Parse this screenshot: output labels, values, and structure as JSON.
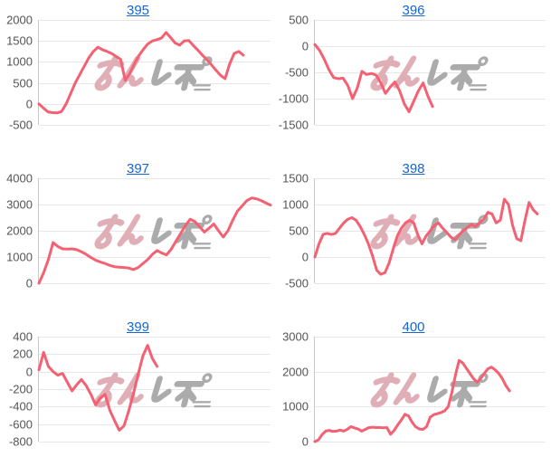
{
  "style": {
    "background": "#ffffff",
    "link_color": "#1766d2",
    "tick_color": "#555555",
    "grid_color": "#e7e7e7",
    "axis_color": "#c9c9c9",
    "line_color": "#f36173",
    "watermark_pink": "#dfaeb6",
    "watermark_gray": "#ababab"
  },
  "watermark": {
    "text": "みんレポ"
  },
  "chart_data": [
    {
      "type": "line",
      "title": "395",
      "yticks": [
        2000,
        1500,
        1000,
        500,
        0,
        -500
      ],
      "ylim": [
        -500,
        2000
      ],
      "x_slots": 52,
      "values": [
        0,
        -100,
        -190,
        -210,
        -215,
        -180,
        0,
        250,
        500,
        700,
        900,
        1100,
        1250,
        1350,
        1290,
        1250,
        1200,
        1130,
        1060,
        560,
        720,
        950,
        1150,
        1300,
        1430,
        1500,
        1530,
        1570,
        1700,
        1580,
        1450,
        1400,
        1500,
        1510,
        1390,
        1280,
        1160,
        1050,
        930,
        800,
        680,
        600,
        950,
        1200,
        1250,
        1160
      ]
    },
    {
      "type": "line",
      "title": "396",
      "yticks": [
        500,
        0,
        -500,
        -1000,
        -1500
      ],
      "ylim": [
        -1500,
        500
      ],
      "x_slots": 50,
      "values": [
        30,
        -80,
        -250,
        -450,
        -600,
        -620,
        -610,
        -750,
        -1000,
        -800,
        -480,
        -540,
        -520,
        -550,
        -700,
        -900,
        -780,
        -680,
        -850,
        -1100,
        -1250,
        -1050,
        -850,
        -700,
        -950,
        -1150
      ]
    },
    {
      "type": "line",
      "title": "397",
      "yticks": [
        4000,
        3000,
        2000,
        1000,
        0
      ],
      "ylim": [
        0,
        4000
      ],
      "x_slots": 50,
      "values": [
        0,
        400,
        900,
        1550,
        1400,
        1310,
        1300,
        1310,
        1280,
        1200,
        1100,
        980,
        880,
        810,
        750,
        680,
        630,
        610,
        600,
        580,
        520,
        600,
        750,
        900,
        1100,
        1250,
        1150,
        1080,
        1300,
        1600,
        1900,
        2200,
        2440,
        2350,
        2150,
        1950,
        2100,
        2260,
        2000,
        1760,
        2000,
        2400,
        2750,
        2950,
        3150,
        3250,
        3220,
        3150,
        3060,
        2980
      ]
    },
    {
      "type": "line",
      "title": "398",
      "yticks": [
        1500,
        1000,
        500,
        0,
        -500
      ],
      "ylim": [
        -500,
        1500
      ],
      "x_slots": 57,
      "values": [
        0,
        250,
        430,
        450,
        430,
        450,
        550,
        650,
        720,
        750,
        700,
        580,
        430,
        250,
        20,
        -250,
        -330,
        -300,
        -120,
        150,
        400,
        550,
        650,
        700,
        650,
        420,
        250,
        400,
        500,
        600,
        650,
        550,
        470,
        380,
        330,
        420,
        500,
        560,
        620,
        580,
        650,
        720,
        850,
        820,
        650,
        700,
        1100,
        1000,
        600,
        350,
        310,
        700,
        1040,
        900,
        820
      ]
    },
    {
      "type": "line",
      "title": "399",
      "yticks": [
        400,
        200,
        0,
        -200,
        -400,
        -600,
        -800
      ],
      "ylim": [
        -800,
        400
      ],
      "x_slots": 50,
      "values": [
        20,
        220,
        60,
        0,
        -40,
        -20,
        -120,
        -220,
        -150,
        -90,
        -160,
        -260,
        -380,
        -300,
        -260,
        -440,
        -560,
        -670,
        -620,
        -450,
        -250,
        -30,
        180,
        300,
        150,
        60
      ]
    },
    {
      "type": "line",
      "title": "400",
      "yticks": [
        3000,
        2000,
        1000,
        0
      ],
      "ylim": [
        0,
        3000
      ],
      "x_slots": 65,
      "values": [
        0,
        50,
        200,
        300,
        320,
        290,
        300,
        330,
        300,
        350,
        430,
        390,
        360,
        300,
        350,
        400,
        410,
        400,
        400,
        395,
        400,
        210,
        320,
        480,
        620,
        780,
        730,
        550,
        420,
        360,
        350,
        430,
        700,
        770,
        800,
        830,
        880,
        1000,
        1400,
        1900,
        2320,
        2250,
        2100,
        1950,
        1800,
        1700,
        1800,
        1950,
        2080,
        2130,
        2050,
        1950,
        1800,
        1600,
        1450
      ]
    }
  ]
}
